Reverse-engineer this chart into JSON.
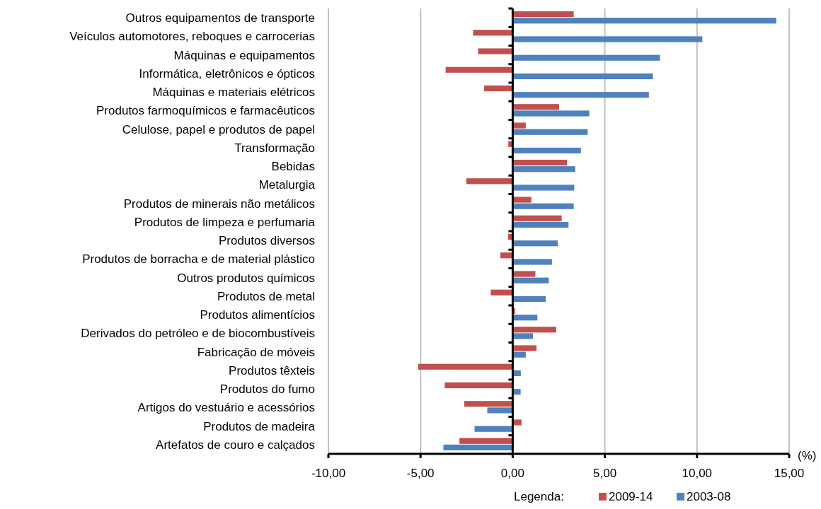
{
  "chart_data": {
    "type": "bar",
    "orientation": "horizontal",
    "xlabel": "(%)",
    "legend_title": "Legenda:",
    "legend": "bottom right",
    "grid": "x",
    "categories": [
      "Outros equipamentos de transporte",
      "Veículos automotores, reboques e carrocerias",
      "Máquinas e equipamentos",
      "Informática, eletrônicos e ópticos",
      "Máquinas e materiais elétricos",
      "Produtos farmoquímicos e farmacêuticos",
      "Celulose, papel e produtos de papel",
      "Transformação",
      "Bebidas",
      "Metalurgia",
      "Produtos de minerais não metálicos",
      "Produtos de limpeza e perfumaria",
      "Produtos diversos",
      "Produtos de borracha e de material plástico",
      "Outros produtos químicos",
      "Produtos de metal",
      "Produtos alimentícios",
      "Derivados do petróleo e de biocombustíveis",
      "Fabricação de móveis",
      "Produtos têxteis",
      "Produtos do fumo",
      "Artigos do vestuário e acessórios",
      "Produtos de madeira",
      "Artefatos de couro e calçados"
    ],
    "xlim": [
      -10,
      15
    ],
    "xticks": [
      {
        "value": -10,
        "label": "-10,00"
      },
      {
        "value": -5,
        "label": "-5,00"
      },
      {
        "value": 0,
        "label": "0,00"
      },
      {
        "value": 5,
        "label": "5,00"
      },
      {
        "value": 10,
        "label": "10,00"
      },
      {
        "value": 15,
        "label": "15,00"
      }
    ],
    "series": [
      {
        "name": "2009-14",
        "color": "#c0504d",
        "values": [
          3.31,
          -2.15,
          -1.88,
          -3.64,
          -1.55,
          2.52,
          0.71,
          -0.24,
          2.95,
          -2.52,
          1.01,
          2.66,
          -0.25,
          -0.67,
          1.23,
          -1.19,
          0.13,
          2.36,
          1.29,
          -5.13,
          -3.69,
          -2.63,
          0.48,
          -2.89
        ]
      },
      {
        "name": "2003-08",
        "color": "#4f81bd",
        "values": [
          14.3,
          10.29,
          7.99,
          7.61,
          7.39,
          4.16,
          4.07,
          3.7,
          3.39,
          3.34,
          3.31,
          3.03,
          2.45,
          2.13,
          1.96,
          1.79,
          1.34,
          1.1,
          0.71,
          0.44,
          0.43,
          -1.38,
          -2.07,
          -3.76
        ]
      }
    ]
  }
}
